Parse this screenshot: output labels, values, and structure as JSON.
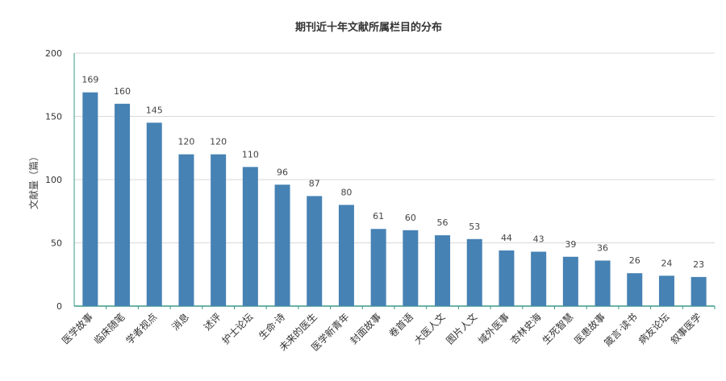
{
  "chart_data": {
    "type": "bar",
    "title": "期刊近十年文献所属栏目的分布",
    "xlabel": "",
    "ylabel": "文献量（篇）",
    "ylim": [
      0,
      200
    ],
    "yticks": [
      0,
      50,
      100,
      150,
      200
    ],
    "grid": true,
    "bar_color": "#4682b4",
    "categories": [
      "医学故事",
      "临床随笔",
      "学者视点",
      "消息",
      "述评",
      "护士论坛",
      "生命·诗",
      "未来的医生",
      "医学新青年",
      "封面故事",
      "卷首语",
      "大医人文",
      "图片人文",
      "域外医事",
      "杏林史海",
      "生死智慧",
      "医患故事",
      "箴言·读书",
      "病友论坛",
      "叙事医学"
    ],
    "values": [
      169,
      160,
      145,
      120,
      120,
      110,
      96,
      87,
      80,
      61,
      60,
      56,
      53,
      44,
      43,
      39,
      36,
      26,
      24,
      23
    ]
  }
}
